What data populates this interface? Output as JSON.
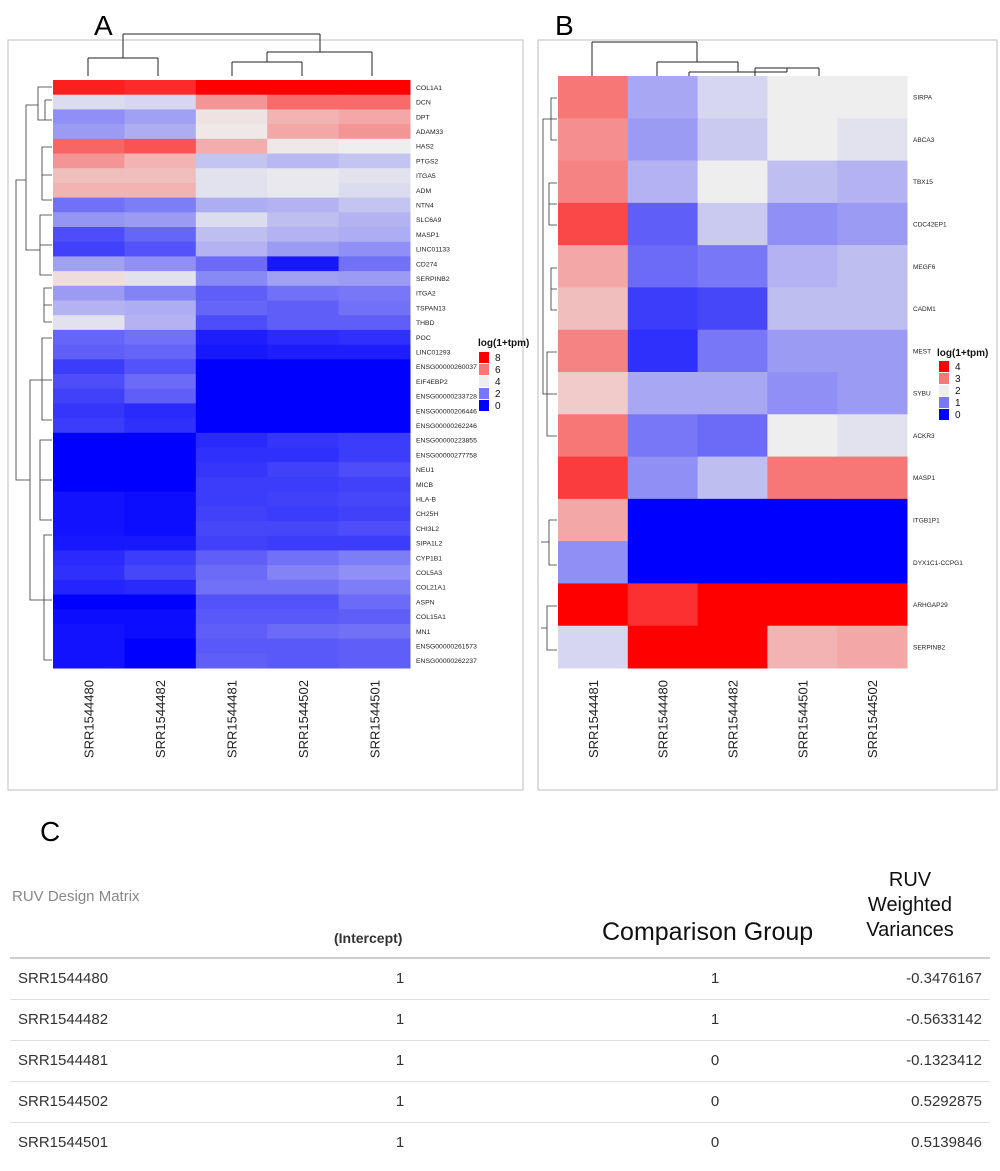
{
  "panels": {
    "a": "A",
    "b": "B",
    "c": "C"
  },
  "chart_data": [
    {
      "type": "heatmap",
      "panel": "A",
      "columns": [
        "SRR1544480",
        "SRR1544482",
        "SRR1544481",
        "SRR1544502",
        "SRR1544501"
      ],
      "rows": [
        "COL1A1",
        "DCN",
        "DPT",
        "ADAM33",
        "HAS2",
        "PTGS2",
        "ITGA5",
        "ADM",
        "NTN4",
        "SLC6A9",
        "MASP1",
        "LINC01133",
        "CD274",
        "SERPINB2",
        "ITGA2",
        "TSPAN13",
        "THBD",
        "POC",
        "LINC01293",
        "ENSG00000260037",
        "EIF4EBP2",
        "ENSG00000233728",
        "ENSG00000206446",
        "ENSG00000262246",
        "ENSG00000223855",
        "ENSG00000277758",
        "NEU1",
        "MICB",
        "HLA-B",
        "CH25H",
        "CHI3L2",
        "SIPA1L2",
        "CYP1B1",
        "COL5A3",
        "COL21A1",
        "ASPN",
        "COL15A1",
        "MN1",
        "ENSG00000261573",
        "ENSG00000262237"
      ],
      "values": [
        [
          7.5,
          7.3,
          8.0,
          8.0,
          8.0
        ],
        [
          3.7,
          3.6,
          5.5,
          6.2,
          6.2
        ],
        [
          2.4,
          2.7,
          4.2,
          5.0,
          5.2
        ],
        [
          2.6,
          2.9,
          4.1,
          5.2,
          5.5
        ],
        [
          6.3,
          6.6,
          5.1,
          4.1,
          4.0
        ],
        [
          5.5,
          5.0,
          3.3,
          3.1,
          3.3
        ],
        [
          4.8,
          4.8,
          3.8,
          3.9,
          3.8
        ],
        [
          5.0,
          5.0,
          3.8,
          3.9,
          3.7
        ],
        [
          1.9,
          2.1,
          2.9,
          3.0,
          3.3
        ],
        [
          2.5,
          2.6,
          3.7,
          3.2,
          3.0
        ],
        [
          1.3,
          1.7,
          3.2,
          3.0,
          2.9
        ],
        [
          1.1,
          1.4,
          3.0,
          2.6,
          2.4
        ],
        [
          2.7,
          2.4,
          1.8,
          0.4,
          1.9
        ],
        [
          4.3,
          3.8,
          2.3,
          2.7,
          2.6
        ],
        [
          2.6,
          2.2,
          1.6,
          1.9,
          2.0
        ],
        [
          3.0,
          2.9,
          1.7,
          1.6,
          1.9
        ],
        [
          3.8,
          3.0,
          1.3,
          1.6,
          1.6
        ],
        [
          1.7,
          1.9,
          0.5,
          0.7,
          0.8
        ],
        [
          1.6,
          1.7,
          0.4,
          0.5,
          0.5
        ],
        [
          1.0,
          1.4,
          0.0,
          0.0,
          0.0
        ],
        [
          1.3,
          1.8,
          0.0,
          0.0,
          0.0
        ],
        [
          1.1,
          1.6,
          0.0,
          0.0,
          0.0
        ],
        [
          0.9,
          0.7,
          0.0,
          0.0,
          0.0
        ],
        [
          1.0,
          0.8,
          0.0,
          0.0,
          0.0
        ],
        [
          0.0,
          0.0,
          0.7,
          0.9,
          1.0
        ],
        [
          0.0,
          0.0,
          0.8,
          0.8,
          1.0
        ],
        [
          0.0,
          0.0,
          0.9,
          1.1,
          1.3
        ],
        [
          0.0,
          0.0,
          1.0,
          1.0,
          1.1
        ],
        [
          0.3,
          0.2,
          1.0,
          1.1,
          1.2
        ],
        [
          0.3,
          0.2,
          1.1,
          1.0,
          1.1
        ],
        [
          0.3,
          0.2,
          1.2,
          1.2,
          1.3
        ],
        [
          0.4,
          0.4,
          1.1,
          1.0,
          1.0
        ],
        [
          0.7,
          1.0,
          1.6,
          1.9,
          2.1
        ],
        [
          0.8,
          1.2,
          1.8,
          2.2,
          2.4
        ],
        [
          0.6,
          0.7,
          1.9,
          1.9,
          2.1
        ],
        [
          0.0,
          0.0,
          1.4,
          1.4,
          1.8
        ],
        [
          0.2,
          0.2,
          1.5,
          1.5,
          1.6
        ],
        [
          0.3,
          0.2,
          1.6,
          1.8,
          1.9
        ],
        [
          0.3,
          0.0,
          1.5,
          1.5,
          1.6
        ],
        [
          0.3,
          0.0,
          1.6,
          1.5,
          1.6
        ]
      ],
      "legend": {
        "title": "log(1+tpm)",
        "ticks": [
          8,
          6,
          4,
          2,
          0
        ],
        "range": [
          0,
          8
        ]
      },
      "colors": {
        "low": "#0000ff",
        "mid": "#eeeeee",
        "high": "#ff0000"
      }
    },
    {
      "type": "heatmap",
      "panel": "B",
      "columns": [
        "SRR1544481",
        "SRR1544480",
        "SRR1544482",
        "SRR1544501",
        "SRR1544502"
      ],
      "rows": [
        "SIRPA",
        "ABCA3",
        "TBX15",
        "CDC42EP1",
        "MEGF6",
        "CADM1",
        "MEST",
        "SYBU",
        "ACKR3",
        "MASP1",
        "ITGB1P1",
        "DYX1C1-CCPG1",
        "ARHGAP29",
        "SERPINB2"
      ],
      "values": [
        [
          3.0,
          1.4,
          1.8,
          2.0,
          2.0
        ],
        [
          2.8,
          1.3,
          1.7,
          2.0,
          1.9
        ],
        [
          2.9,
          1.5,
          2.0,
          1.6,
          1.5
        ],
        [
          3.4,
          0.8,
          1.7,
          1.2,
          1.3
        ],
        [
          2.6,
          0.9,
          1.0,
          1.5,
          1.6
        ],
        [
          2.4,
          0.5,
          0.6,
          1.6,
          1.6
        ],
        [
          2.9,
          0.4,
          1.0,
          1.3,
          1.3
        ],
        [
          2.3,
          1.4,
          1.4,
          1.2,
          1.3
        ],
        [
          3.0,
          1.0,
          0.9,
          2.0,
          1.9
        ],
        [
          3.5,
          1.2,
          1.6,
          3.0,
          3.0
        ],
        [
          2.6,
          0.0,
          0.0,
          0.0,
          0.0
        ],
        [
          1.2,
          0.0,
          0.0,
          0.0,
          0.0
        ],
        [
          4.8,
          3.6,
          4.2,
          4.3,
          4.3
        ],
        [
          1.8,
          4.6,
          4.3,
          2.5,
          2.6
        ]
      ],
      "legend": {
        "title": "log(1+tpm)",
        "ticks": [
          4,
          3,
          2,
          1,
          0
        ],
        "range": [
          0,
          4
        ]
      },
      "colors": {
        "low": "#0000ff",
        "mid": "#eeeeee",
        "high": "#ff0000"
      }
    },
    {
      "type": "table",
      "panel": "C",
      "title": "RUV Design Matrix",
      "headers": {
        "intercept": "(Intercept)",
        "group": "Comparison Group",
        "variances": [
          "RUV",
          "Weighted",
          "Variances"
        ]
      },
      "rows": [
        {
          "sample": "SRR1544480",
          "intercept": "1",
          "group": "1",
          "variance": "-0.3476167"
        },
        {
          "sample": "SRR1544482",
          "intercept": "1",
          "group": "1",
          "variance": "-0.5633142"
        },
        {
          "sample": "SRR1544481",
          "intercept": "1",
          "group": "0",
          "variance": "-0.1323412"
        },
        {
          "sample": "SRR1544502",
          "intercept": "1",
          "group": "0",
          "variance": "0.5292875"
        },
        {
          "sample": "SRR1544501",
          "intercept": "1",
          "group": "0",
          "variance": "0.5139846"
        }
      ]
    }
  ]
}
